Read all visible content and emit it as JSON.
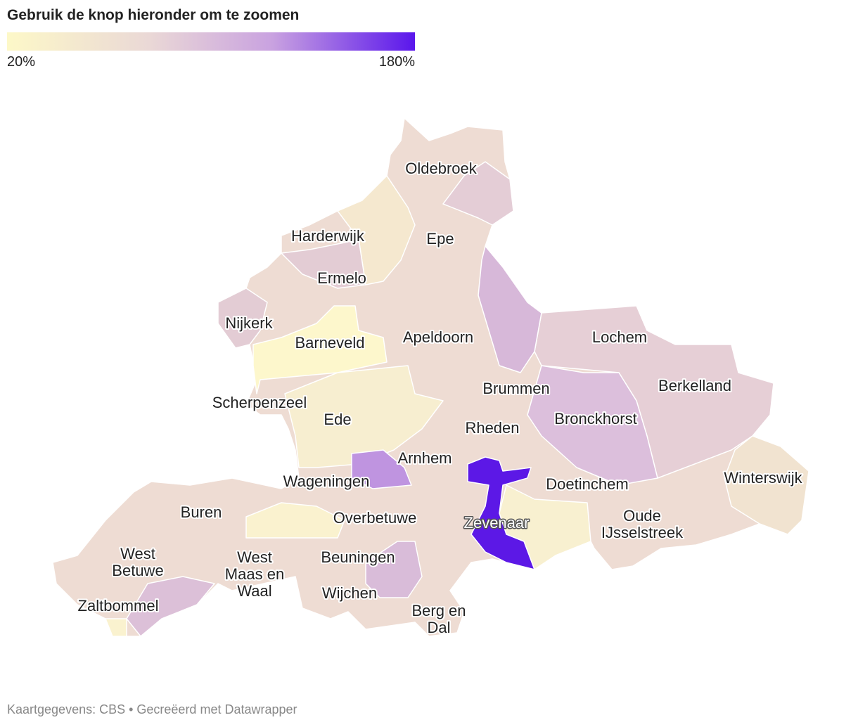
{
  "header": {
    "title": "Gebruik de knop hieronder om te zoomen"
  },
  "legend": {
    "min_label": "20%",
    "max_label": "180%"
  },
  "labels": [
    [
      "Oldebroek"
    ],
    [
      "Harderwijk"
    ],
    [
      "Epe"
    ],
    [
      "Ermelo"
    ],
    [
      "Nijkerk"
    ],
    [
      "Barneveld"
    ],
    [
      "Apeldoorn"
    ],
    [
      "Lochem"
    ],
    [
      "Brummen"
    ],
    [
      "Berkelland"
    ],
    [
      "Scherpenzeel"
    ],
    [
      "Ede"
    ],
    [
      "Rheden"
    ],
    [
      "Bronckhorst"
    ],
    [
      "Arnhem"
    ],
    [
      "Wageningen"
    ],
    [
      "Doetinchem"
    ],
    [
      "Winterswijk"
    ],
    [
      "Buren"
    ],
    [
      "Overbetuwe"
    ],
    [
      "Zevenaar"
    ],
    [
      "West",
      "Betuwe"
    ],
    [
      "West",
      "Maas en",
      "Waal"
    ],
    [
      "Beuningen"
    ],
    [
      "Oude",
      "IJsselstreek"
    ],
    [
      "Wijchen"
    ],
    [
      "Zaltbommel"
    ],
    [
      "Berg en",
      "Dal"
    ]
  ],
  "footer": "Kaartgegevens: CBS • Gecreëerd met Datawrapper"
}
